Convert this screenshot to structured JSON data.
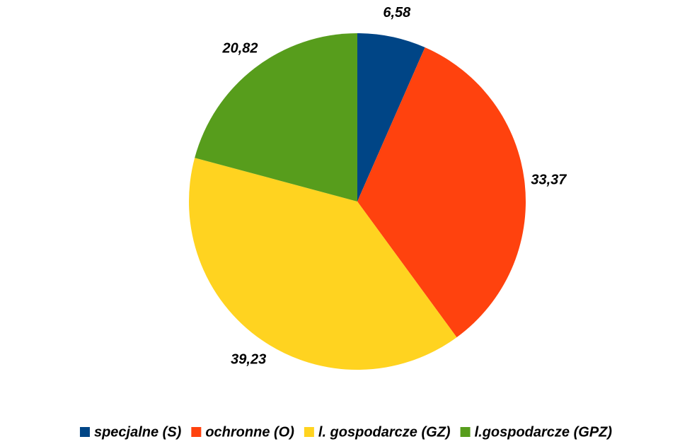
{
  "chart_data": {
    "type": "pie",
    "categories": [
      "specjalne (S)",
      "ochronne (O)",
      "l. gospodarcze (GZ)",
      "l.gospodarcze (GPZ)"
    ],
    "values": [
      6.58,
      33.37,
      39.23,
      20.82
    ],
    "value_labels": [
      "6,58",
      "33,37",
      "39,23",
      "20,82"
    ],
    "colors": [
      "#004586",
      "#ff420e",
      "#ffd320",
      "#579d1c"
    ],
    "legend": "bottom"
  }
}
